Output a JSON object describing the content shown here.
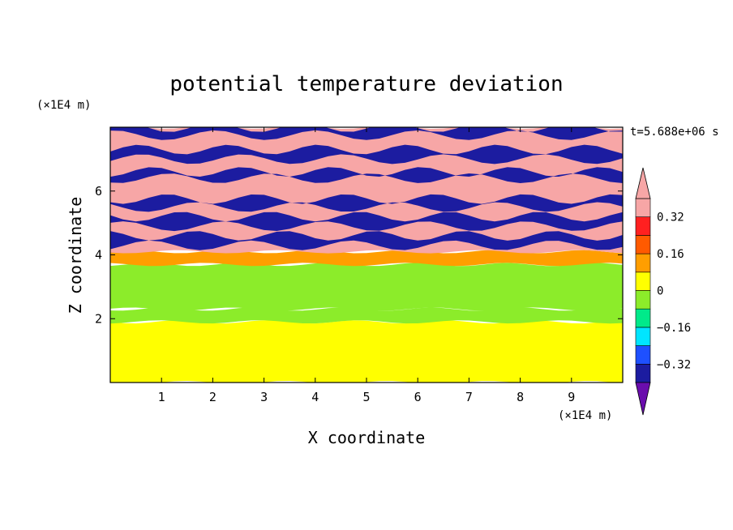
{
  "chart_data": {
    "type": "heatmap",
    "title": "potential temperature deviation",
    "xlabel": "X coordinate",
    "ylabel": "Z coordinate",
    "x_unit": "(×1E4 m)",
    "y_unit": "(×1E4 m)",
    "time_label": "t=5.688e+06 s",
    "xlim": [
      0,
      10
    ],
    "ylim": [
      0,
      8
    ],
    "x_ticks": [
      "1",
      "2",
      "3",
      "4",
      "5",
      "6",
      "7",
      "8",
      "9"
    ],
    "y_ticks": [
      "2",
      "4",
      "6"
    ],
    "x_tick_values": [
      1,
      2,
      3,
      4,
      5,
      6,
      7,
      8,
      9
    ],
    "y_tick_values": [
      2,
      4,
      6
    ],
    "colorbar": {
      "levels": [
        -0.4,
        -0.32,
        -0.24,
        -0.16,
        -0.08,
        0,
        0.08,
        0.16,
        0.24,
        0.32,
        0.4
      ],
      "colors": [
        "#6a0dad",
        "#1c1ca0",
        "#1e50ff",
        "#00e5ff",
        "#00ea8a",
        "#8cec2a",
        "#ffff00",
        "#ff9e00",
        "#ff5a00",
        "#ff2020",
        "#f7a6a6",
        "#f7a6a6"
      ],
      "labels": [
        "0.32",
        "0.16",
        "0",
        "−0.16",
        "−0.32"
      ],
      "label_values": [
        0.32,
        0.16,
        0,
        -0.16,
        -0.32
      ],
      "extend": "both"
    },
    "bands": [
      {
        "z0": 0,
        "z1": 1.9,
        "value": 0.04
      },
      {
        "z0": 1.9,
        "z1": 2.3,
        "value": -0.02
      },
      {
        "z0": 2.3,
        "z1": 3.7,
        "value": -0.04
      },
      {
        "z0": 3.7,
        "z1": 4.1,
        "value": 0.1
      },
      {
        "z0": 4.1,
        "z1": 8,
        "value": 0.4
      },
      {
        "z0": 4.3,
        "z1": 4.6,
        "value": -0.4
      },
      {
        "z0": 4.9,
        "z1": 5.2,
        "value": -0.4
      },
      {
        "z0": 5.5,
        "z1": 5.75,
        "value": -0.4
      },
      {
        "z0": 6.4,
        "z1": 6.6,
        "value": -0.4
      },
      {
        "z0": 7.0,
        "z1": 7.3,
        "value": -0.4
      },
      {
        "z0": 7.75,
        "z1": 8,
        "value": -0.4
      }
    ]
  }
}
